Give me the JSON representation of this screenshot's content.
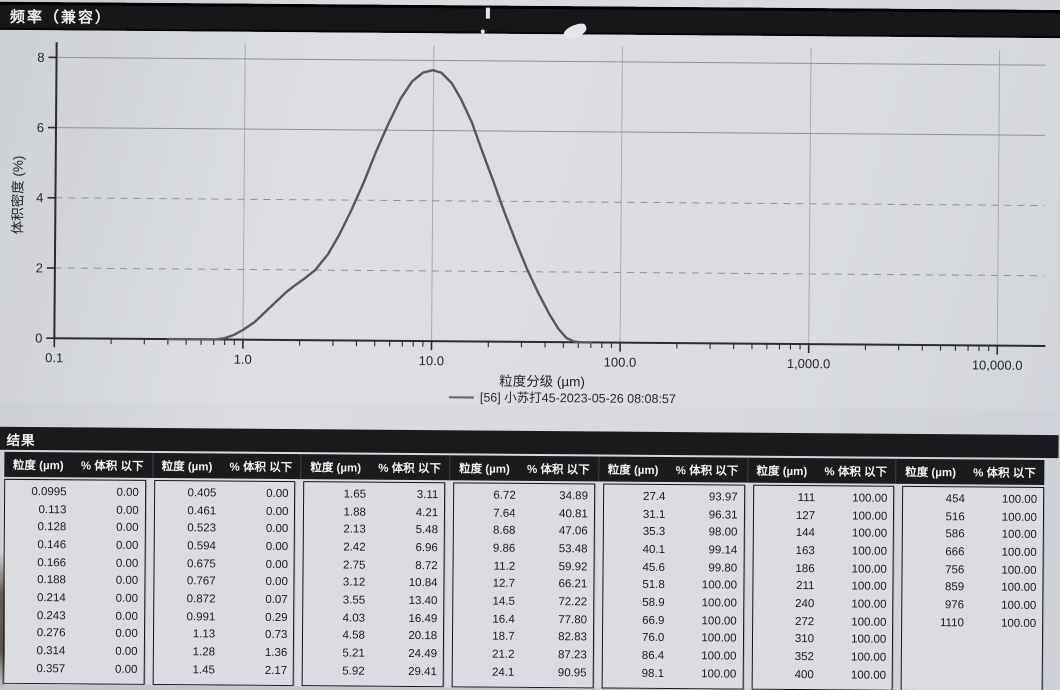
{
  "header": {
    "title": "频率（兼容）"
  },
  "chart_data": {
    "type": "line",
    "title": "频率（兼容）",
    "xlabel": "粒度分级 (µm)",
    "ylabel": "体积密度 (%)",
    "x_scale": "log",
    "xlim": [
      0.1,
      10000
    ],
    "ylim": [
      0,
      8
    ],
    "grid": "horizontal dashed at 2 and 4, solid at 6 and 8; vertical light lines at decades",
    "legend": "[56] 小苏打45-2023-05-26 08:08:57",
    "legend_position": "below x-axis label, centered",
    "y_ticks": [
      0,
      2,
      4,
      6,
      8
    ],
    "x_ticks": [
      {
        "v": 0.1,
        "label": "0.1"
      },
      {
        "v": 1.0,
        "label": "1.0"
      },
      {
        "v": 10.0,
        "label": "10.0"
      },
      {
        "v": 100.0,
        "label": "100.0"
      },
      {
        "v": 1000.0,
        "label": "1,000.0"
      },
      {
        "v": 10000.0,
        "label": "10,000.0"
      }
    ],
    "series": [
      {
        "name": "[56] 小苏打45-2023-05-26 08:08:57",
        "points": [
          [
            0.4,
            0
          ],
          [
            0.6,
            0
          ],
          [
            0.72,
            0
          ],
          [
            0.8,
            0.04
          ],
          [
            0.9,
            0.14
          ],
          [
            1.0,
            0.28
          ],
          [
            1.15,
            0.5
          ],
          [
            1.3,
            0.78
          ],
          [
            1.5,
            1.1
          ],
          [
            1.7,
            1.38
          ],
          [
            1.9,
            1.58
          ],
          [
            2.1,
            1.75
          ],
          [
            2.4,
            2.0
          ],
          [
            2.8,
            2.45
          ],
          [
            3.2,
            3.0
          ],
          [
            3.7,
            3.7
          ],
          [
            4.3,
            4.5
          ],
          [
            5.0,
            5.4
          ],
          [
            5.8,
            6.2
          ],
          [
            6.7,
            6.9
          ],
          [
            7.7,
            7.4
          ],
          [
            8.8,
            7.65
          ],
          [
            9.9,
            7.72
          ],
          [
            11,
            7.65
          ],
          [
            12.5,
            7.35
          ],
          [
            14,
            6.9
          ],
          [
            16,
            6.25
          ],
          [
            18,
            5.5
          ],
          [
            21,
            4.55
          ],
          [
            24,
            3.7
          ],
          [
            28,
            2.8
          ],
          [
            32,
            2.05
          ],
          [
            37,
            1.35
          ],
          [
            42,
            0.8
          ],
          [
            47,
            0.38
          ],
          [
            52,
            0.12
          ],
          [
            57,
            0.02
          ],
          [
            62,
            0
          ],
          [
            70,
            0
          ]
        ]
      }
    ]
  },
  "results_table": {
    "title": "结果",
    "col_size_label": "粒度 (µm)",
    "col_pct_label": "% 体积 以下",
    "groups": [
      {
        "rows": [
          [
            "0.0995",
            "0.00"
          ],
          [
            "0.113",
            "0.00"
          ],
          [
            "0.128",
            "0.00"
          ],
          [
            "0.146",
            "0.00"
          ],
          [
            "0.166",
            "0.00"
          ],
          [
            "0.188",
            "0.00"
          ],
          [
            "0.214",
            "0.00"
          ],
          [
            "0.243",
            "0.00"
          ],
          [
            "0.276",
            "0.00"
          ],
          [
            "0.314",
            "0.00"
          ],
          [
            "0.357",
            "0.00"
          ]
        ]
      },
      {
        "rows": [
          [
            "0.405",
            "0.00"
          ],
          [
            "0.461",
            "0.00"
          ],
          [
            "0.523",
            "0.00"
          ],
          [
            "0.594",
            "0.00"
          ],
          [
            "0.675",
            "0.00"
          ],
          [
            "0.767",
            "0.00"
          ],
          [
            "0.872",
            "0.07"
          ],
          [
            "0.991",
            "0.29"
          ],
          [
            "1.13",
            "0.73"
          ],
          [
            "1.28",
            "1.36"
          ],
          [
            "1.45",
            "2.17"
          ]
        ]
      },
      {
        "rows": [
          [
            "1.65",
            "3.11"
          ],
          [
            "1.88",
            "4.21"
          ],
          [
            "2.13",
            "5.48"
          ],
          [
            "2.42",
            "6.96"
          ],
          [
            "2.75",
            "8.72"
          ],
          [
            "3.12",
            "10.84"
          ],
          [
            "3.55",
            "13.40"
          ],
          [
            "4.03",
            "16.49"
          ],
          [
            "4.58",
            "20.18"
          ],
          [
            "5.21",
            "24.49"
          ],
          [
            "5.92",
            "29.41"
          ]
        ]
      },
      {
        "rows": [
          [
            "6.72",
            "34.89"
          ],
          [
            "7.64",
            "40.81"
          ],
          [
            "8.68",
            "47.06"
          ],
          [
            "9.86",
            "53.48"
          ],
          [
            "11.2",
            "59.92"
          ],
          [
            "12.7",
            "66.21"
          ],
          [
            "14.5",
            "72.22"
          ],
          [
            "16.4",
            "77.80"
          ],
          [
            "18.7",
            "82.83"
          ],
          [
            "21.2",
            "87.23"
          ],
          [
            "24.1",
            "90.95"
          ]
        ]
      },
      {
        "rows": [
          [
            "27.4",
            "93.97"
          ],
          [
            "31.1",
            "96.31"
          ],
          [
            "35.3",
            "98.00"
          ],
          [
            "40.1",
            "99.14"
          ],
          [
            "45.6",
            "99.80"
          ],
          [
            "51.8",
            "100.00"
          ],
          [
            "58.9",
            "100.00"
          ],
          [
            "66.9",
            "100.00"
          ],
          [
            "76.0",
            "100.00"
          ],
          [
            "86.4",
            "100.00"
          ],
          [
            "98.1",
            "100.00"
          ]
        ]
      },
      {
        "rows": [
          [
            "111",
            "100.00"
          ],
          [
            "127",
            "100.00"
          ],
          [
            "144",
            "100.00"
          ],
          [
            "163",
            "100.00"
          ],
          [
            "186",
            "100.00"
          ],
          [
            "211",
            "100.00"
          ],
          [
            "240",
            "100.00"
          ],
          [
            "272",
            "100.00"
          ],
          [
            "310",
            "100.00"
          ],
          [
            "352",
            "100.00"
          ],
          [
            "400",
            "100.00"
          ]
        ]
      },
      {
        "rows": [
          [
            "454",
            "100.00"
          ],
          [
            "516",
            "100.00"
          ],
          [
            "586",
            "100.00"
          ],
          [
            "666",
            "100.00"
          ],
          [
            "756",
            "100.00"
          ],
          [
            "859",
            "100.00"
          ],
          [
            "976",
            "100.00"
          ],
          [
            "1110",
            "100.00"
          ]
        ]
      }
    ]
  },
  "colors": {
    "paper": "#d7d9de",
    "bar_black": "#17171a",
    "curve": "#58585b",
    "gridline": "#8f9298",
    "text": "#1b1b1e"
  }
}
